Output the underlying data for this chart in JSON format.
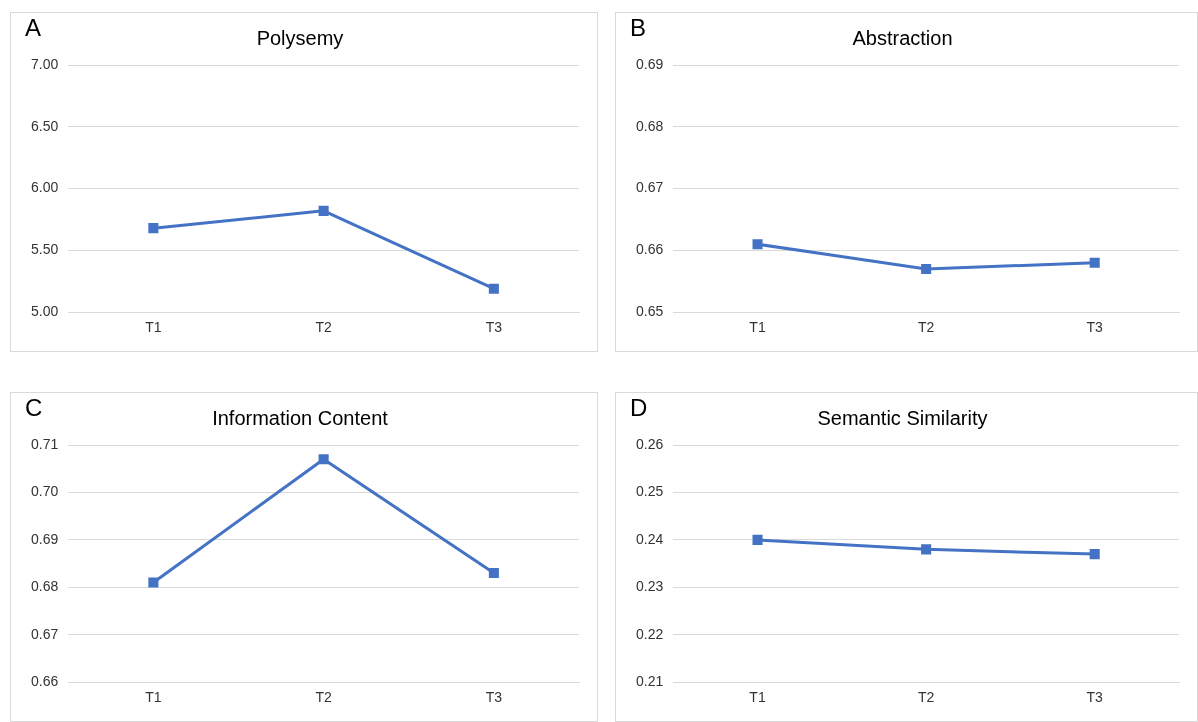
{
  "chart_data": [
    {
      "type": "line",
      "title": "Polysemy",
      "annotations": [
        "A"
      ],
      "categories": [
        "T1",
        "T2",
        "T3"
      ],
      "series": [
        {
          "color": "#4472c4",
          "values": [
            5.68,
            5.82,
            5.19
          ]
        }
      ],
      "marker": "square",
      "ylim": [
        5,
        7
      ],
      "yticks": [
        {
          "value": 5,
          "label": "5.00"
        },
        {
          "value": 5.5,
          "label": "5.50"
        },
        {
          "value": 6,
          "label": "6.00"
        },
        {
          "value": 6.5,
          "label": "6.50"
        },
        {
          "value": 7,
          "label": "7.00"
        }
      ],
      "grid": "y",
      "legend": false
    },
    {
      "type": "line",
      "title": "Abstraction",
      "annotations": [
        "B"
      ],
      "categories": [
        "T1",
        "T2",
        "T3"
      ],
      "series": [
        {
          "color": "#4472c4",
          "values": [
            0.661,
            0.657,
            0.658
          ]
        }
      ],
      "marker": "square",
      "ylim": [
        0.65,
        0.69
      ],
      "yticks": [
        {
          "value": 0.65,
          "label": "0.65"
        },
        {
          "value": 0.66,
          "label": "0.66"
        },
        {
          "value": 0.67,
          "label": "0.67"
        },
        {
          "value": 0.68,
          "label": "0.68"
        },
        {
          "value": 0.69,
          "label": "0.69"
        }
      ],
      "grid": "y",
      "legend": false
    },
    {
      "type": "line",
      "title": "Information Content",
      "annotations": [
        "C"
      ],
      "categories": [
        "T1",
        "T2",
        "T3"
      ],
      "series": [
        {
          "color": "#4472c4",
          "values": [
            0.681,
            0.707,
            0.683
          ]
        }
      ],
      "marker": "square",
      "ylim": [
        0.66,
        0.71
      ],
      "yticks": [
        {
          "value": 0.66,
          "label": "0.66"
        },
        {
          "value": 0.67,
          "label": "0.67"
        },
        {
          "value": 0.68,
          "label": "0.68"
        },
        {
          "value": 0.69,
          "label": "0.69"
        },
        {
          "value": 0.7,
          "label": "0.70"
        },
        {
          "value": 0.71,
          "label": "0.71"
        }
      ],
      "grid": "y",
      "legend": false
    },
    {
      "type": "line",
      "title": "Semantic Similarity",
      "annotations": [
        "D"
      ],
      "categories": [
        "T1",
        "T2",
        "T3"
      ],
      "series": [
        {
          "color": "#4472c4",
          "values": [
            0.24,
            0.238,
            0.237
          ]
        }
      ],
      "marker": "square",
      "ylim": [
        0.21,
        0.26
      ],
      "yticks": [
        {
          "value": 0.21,
          "label": "0.21"
        },
        {
          "value": 0.22,
          "label": "0.22"
        },
        {
          "value": 0.23,
          "label": "0.23"
        },
        {
          "value": 0.24,
          "label": "0.24"
        },
        {
          "value": 0.25,
          "label": "0.25"
        },
        {
          "value": 0.26,
          "label": "0.26"
        }
      ],
      "grid": "y",
      "legend": false
    }
  ]
}
